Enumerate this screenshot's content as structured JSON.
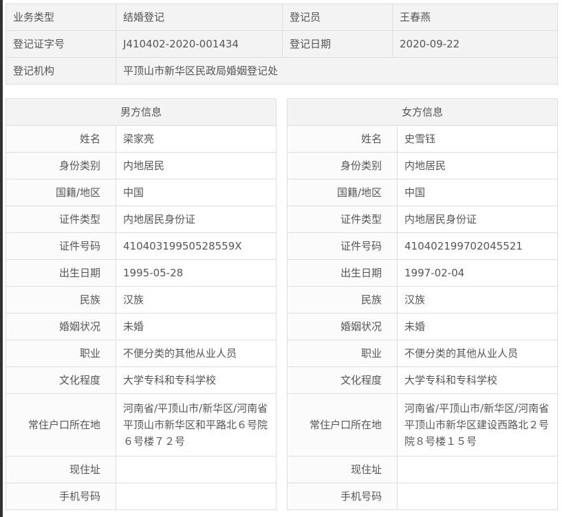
{
  "summary": {
    "business_type_label": "业务类型",
    "business_type": "结婚登记",
    "registrar_label": "登记员",
    "registrar": "王春燕",
    "cert_no_label": "登记证字号",
    "cert_no": "J410402-2020-001434",
    "reg_date_label": "登记日期",
    "reg_date": "2020-09-22",
    "agency_label": "登记机构",
    "agency": "平顶山市新华区民政局婚姻登记处"
  },
  "labels": [
    "姓名",
    "身份类别",
    "国籍/地区",
    "证件类型",
    "证件号码",
    "出生日期",
    "民族",
    "婚姻状况",
    "职业",
    "文化程度",
    "常住户口所在地",
    "现住址",
    "手机号码"
  ],
  "male": {
    "title": "男方信息",
    "values": [
      "梁家亮",
      "内地居民",
      "中国",
      "内地居民身份证",
      "41040319950528559X",
      "1995-05-28",
      "汉族",
      "未婚",
      "不便分类的其他从业人员",
      "大学专科和专科学校",
      "河南省/平顶山市/新华区/河南省平顶山市新华区和平路北６号院６号楼７２号",
      "",
      ""
    ]
  },
  "female": {
    "title": "女方信息",
    "values": [
      "史雪钰",
      "内地居民",
      "中国",
      "内地居民身份证",
      "410402199702045521",
      "1997-02-04",
      "汉族",
      "未婚",
      "不便分类的其他从业人员",
      "大学专科和专科学校",
      "河南省/平顶山市/新华区/河南省平顶山市新华区建设西路北２号院８号楼１５号",
      "",
      ""
    ]
  }
}
